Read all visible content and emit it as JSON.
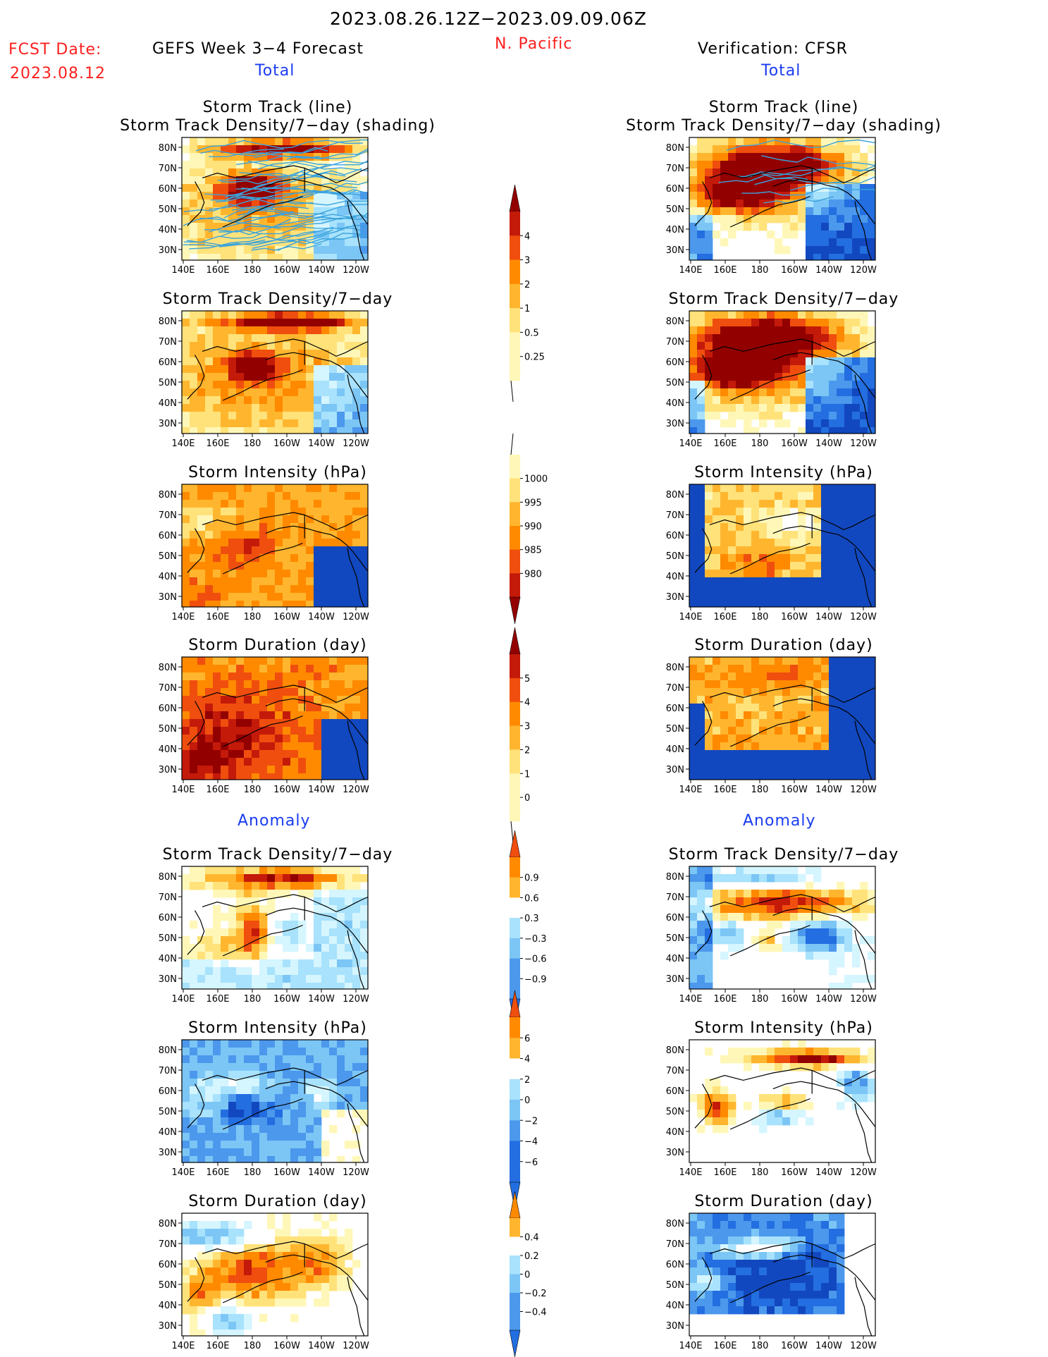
{
  "header": {
    "period": "2023.08.26.12Z−2023.09.09.06Z",
    "fcst_label": "FCST Date:",
    "fcst_date": "2023.08.12",
    "model_title": "GEFS Week 3−4 Forecast",
    "region": "N. Pacific",
    "verification": "Verification: CFSR",
    "total_left": "Total",
    "total_right": "Total",
    "anomaly_left": "Anomaly",
    "anomaly_right": "Anomaly"
  },
  "axes": {
    "lat_labels": [
      "80N",
      "70N",
      "60N",
      "50N",
      "40N",
      "30N"
    ],
    "lon_labels": [
      "140E",
      "160E",
      "180",
      "160W",
      "140W",
      "120W"
    ]
  },
  "colors": {
    "pos": [
      "#fff7b8",
      "#ffe27a",
      "#ffb62e",
      "#ff8a00",
      "#f04e0e",
      "#c41a0a",
      "#930000"
    ],
    "neg": [
      "#d5f5ff",
      "#a8e2fc",
      "#7cc6f6",
      "#4c98ec",
      "#236ee0",
      "#1248bf"
    ],
    "track": "#3aa3dc"
  },
  "chart_data": [
    {
      "type": "heatmap",
      "id": "fc-track",
      "title_lines": [
        "Storm Track (line)",
        "Storm Track Density/7−day (shading)"
      ],
      "overlay": "storm tracks"
    },
    {
      "type": "heatmap",
      "id": "fc-density",
      "title_lines": [
        "Storm Track Density/7−day"
      ]
    },
    {
      "type": "heatmap",
      "id": "fc-intensity",
      "title_lines": [
        "Storm Intensity (hPa)"
      ]
    },
    {
      "type": "heatmap",
      "id": "fc-duration",
      "title_lines": [
        "Storm Duration (day)"
      ]
    },
    {
      "type": "heatmap",
      "id": "fc-anom-density",
      "title_lines": [
        "Storm Track Density/7−day"
      ]
    },
    {
      "type": "heatmap",
      "id": "fc-anom-intensity",
      "title_lines": [
        "Storm Intensity (hPa)"
      ]
    },
    {
      "type": "heatmap",
      "id": "fc-anom-duration",
      "title_lines": [
        "Storm Duration (day)"
      ]
    },
    {
      "type": "heatmap",
      "id": "vr-track",
      "title_lines": [
        "Storm Track (line)",
        "Storm Track Density/7−day (shading)"
      ],
      "overlay": "storm tracks"
    },
    {
      "type": "heatmap",
      "id": "vr-density",
      "title_lines": [
        "Storm Track Density/7−day"
      ]
    },
    {
      "type": "heatmap",
      "id": "vr-intensity",
      "title_lines": [
        "Storm Intensity (hPa)"
      ]
    },
    {
      "type": "heatmap",
      "id": "vr-duration",
      "title_lines": [
        "Storm Duration (day)"
      ]
    },
    {
      "type": "heatmap",
      "id": "vr-anom-density",
      "title_lines": [
        "Storm Track Density/7−day"
      ]
    },
    {
      "type": "heatmap",
      "id": "vr-anom-intensity",
      "title_lines": [
        "Storm Intensity (hPa)"
      ]
    },
    {
      "type": "heatmap",
      "id": "vr-anom-duration",
      "title_lines": [
        "Storm Duration (day)"
      ]
    }
  ],
  "colorbars": [
    {
      "id": "cb-density",
      "labels": [
        "4",
        "3",
        "2",
        "1",
        "0.5",
        "0.25"
      ],
      "upper_arrow": true,
      "lower_arrow": false
    },
    {
      "id": "cb-intensity",
      "labels": [
        "1000",
        "995",
        "990",
        "985",
        "980"
      ],
      "upper_arrow": false,
      "lower_arrow": true
    },
    {
      "id": "cb-duration",
      "labels": [
        "5",
        "4",
        "3",
        "2",
        "1",
        "0"
      ],
      "upper_arrow": true,
      "lower_arrow": false
    },
    {
      "id": "cb-anom-density",
      "labels": [
        "0.9",
        "0.6",
        "0.3",
        "−0.3",
        "−0.6",
        "−0.9"
      ],
      "upper_arrow": true,
      "lower_arrow": true
    },
    {
      "id": "cb-anom-intensity",
      "labels": [
        "6",
        "4",
        "2",
        "0",
        "−2",
        "−4",
        "−6"
      ],
      "upper_arrow": true,
      "lower_arrow": true
    },
    {
      "id": "cb-anom-duration",
      "labels": [
        "0.4",
        "0.2",
        "0",
        "−0.2",
        "−0.4"
      ],
      "upper_arrow": true,
      "lower_arrow": true
    }
  ]
}
